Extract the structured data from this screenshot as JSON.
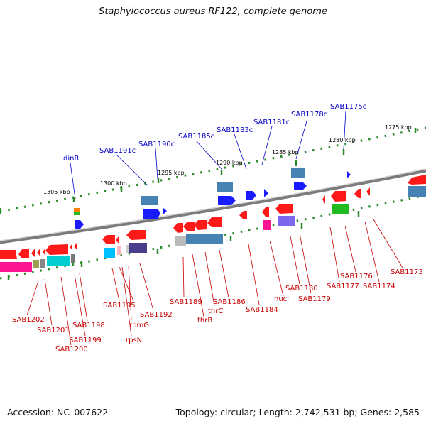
{
  "title": "Staphylococcus aureus RF122, complete genome",
  "accession": "Accession: NC_007622",
  "topology": "Topology: circular; Length: 2,742,531 bp; Genes: 2,585",
  "ticks": [
    {
      "label": "1275 kbp"
    },
    {
      "label": "1280 kbp"
    },
    {
      "label": "1285 kbp"
    },
    {
      "label": "1290 kbp"
    },
    {
      "label": "1295 kbp"
    },
    {
      "label": "1300 kbp"
    },
    {
      "label": "1305 kbp"
    }
  ],
  "blue_labels": [
    "SAB1175c",
    "SAB1178c",
    "SAB1181c",
    "SAB1183c",
    "SAB1185c",
    "SAB1190c",
    "SAB1191c",
    "dinR"
  ],
  "red_labels": [
    "SAB1173",
    "SAB1174",
    "SAB1176",
    "SAB1177",
    "SAB1179",
    "SAB1180",
    "nucI",
    "SAB1184",
    "SAB1186",
    "thrC",
    "thrB",
    "SAB1189",
    "SAB1192",
    "SAB1195",
    "rpmG",
    "rpsN",
    "SAB1198",
    "SAB1199",
    "SAB1200",
    "SAB1201",
    "SAB1202"
  ],
  "colors": {
    "forward": "#1a1aff",
    "reverse": "#ff1a1a",
    "label_blue": "#0000c8",
    "label_red": "#c80000",
    "backbone": "#808080",
    "tick": "#2a8a2a"
  }
}
